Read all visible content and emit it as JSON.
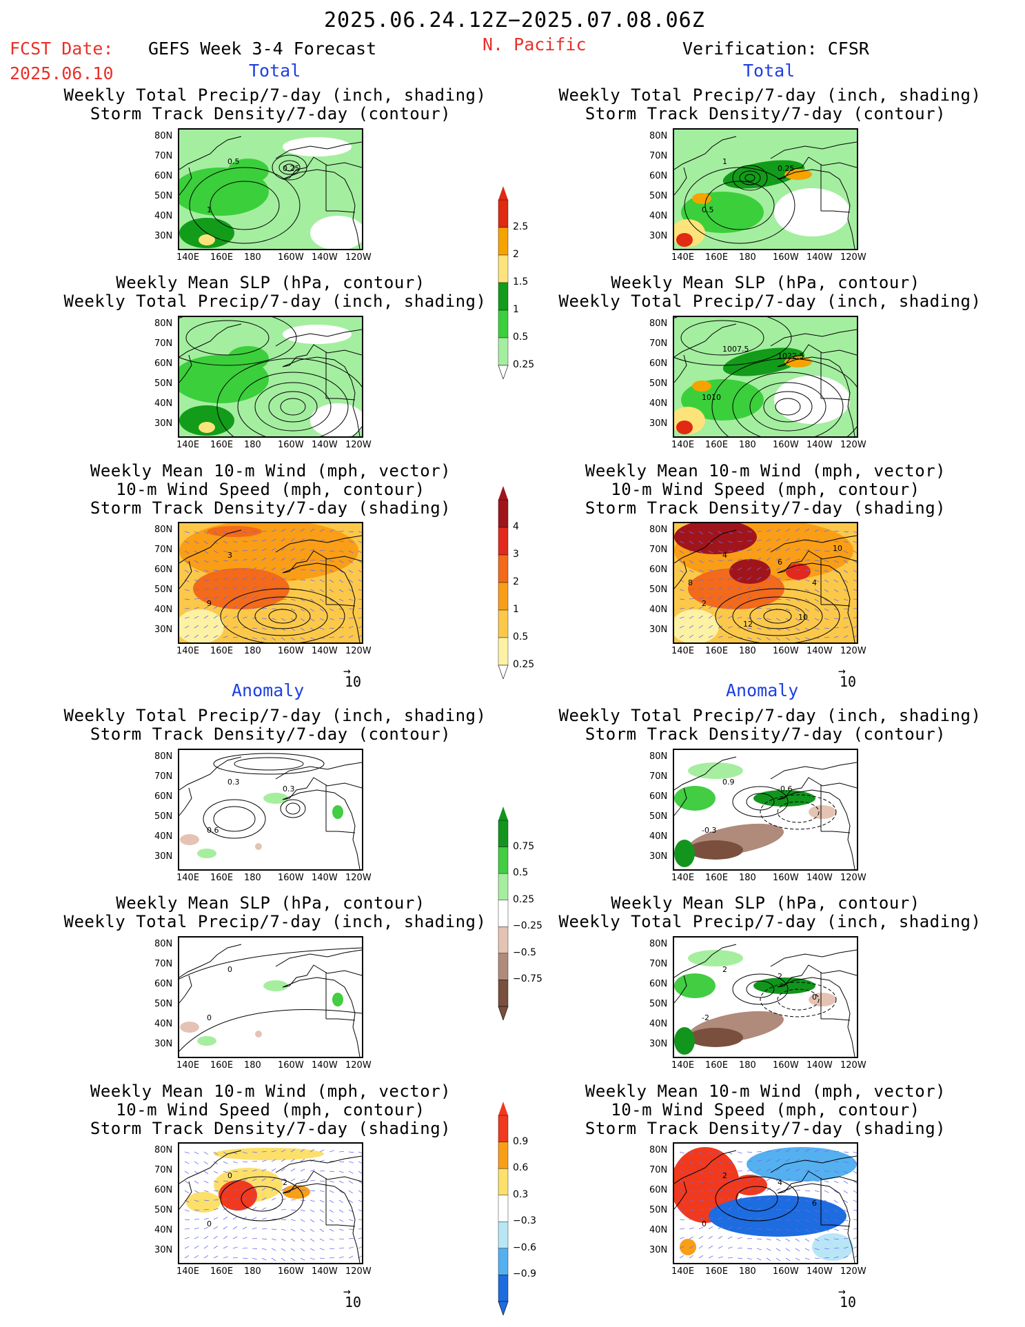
{
  "header": {
    "date_range": "2025.06.24.12Z−2025.07.08.06Z",
    "fcst_label": "FCST Date:",
    "fcst_date": "2025.06.10",
    "forecast_title": "GEFS Week 3-4 Forecast",
    "region": "N. Pacific",
    "verification": "Verification: CFSR"
  },
  "sections": {
    "total_left": "Total",
    "total_right": "Total",
    "anomaly_left": "Anomaly",
    "anomaly_right": "Anomaly"
  },
  "captions": {
    "precip_storm": [
      "Weekly Total Precip/7-day (inch, shading)",
      "Storm Track Density/7-day (contour)"
    ],
    "slp_precip": [
      "Weekly Mean SLP (hPa, contour)",
      "Weekly Total Precip/7-day (inch, shading)"
    ],
    "wind_storm": [
      "Weekly Mean 10-m Wind (mph, vector)",
      "10-m Wind Speed (mph, contour)",
      "Storm Track Density/7-day (shading)"
    ]
  },
  "axes": {
    "lat_labels": [
      "80N",
      "70N",
      "60N",
      "50N",
      "40N",
      "30N"
    ],
    "lon_labels": [
      "140E",
      "160E",
      "180",
      "160W",
      "140W",
      "120W"
    ]
  },
  "vector_ref": "10",
  "colorbars": {
    "precip_total": {
      "labels": [
        "2.5",
        "2",
        "1.5",
        "1",
        "0.5",
        "0.25"
      ],
      "colors": [
        "#e02a12",
        "#f5a300",
        "#fde37a",
        "#129c1a",
        "#3bcf3b",
        "#a4eea0"
      ]
    },
    "storm_total": {
      "labels": [
        "4",
        "3",
        "2",
        "1",
        "0.5",
        "0.25"
      ],
      "colors": [
        "#a0151b",
        "#e2291d",
        "#f26a1a",
        "#f99e16",
        "#fbc84a",
        "#fdf2a4"
      ]
    },
    "precip_anom": {
      "labels": [
        "0.75",
        "0.5",
        "0.25",
        "−0.25",
        "−0.5",
        "−0.75"
      ],
      "colors": [
        "#11951d",
        "#42cd42",
        "#a5ee9f",
        "#ffffff",
        "#e4c3b4",
        "#b08a7b",
        "#7a4f3e"
      ]
    },
    "storm_anom": {
      "labels": [
        "0.9",
        "0.6",
        "0.3",
        "−0.3",
        "−0.6",
        "−0.9"
      ],
      "colors": [
        "#f1391d",
        "#f99e16",
        "#fde06a",
        "#ffffff",
        "#b9e6f7",
        "#55b0f0",
        "#1d6ce0"
      ]
    }
  },
  "panel_annotations": {
    "p1": [
      "0.5",
      "1",
      "0.25"
    ],
    "p2": [
      "1",
      "0.5",
      "0.25"
    ],
    "p4": [
      "1007.5",
      "1010",
      "1022.5"
    ],
    "p5": [
      "3",
      "9"
    ],
    "p6": [
      "4",
      "2",
      "6",
      "4",
      "12",
      "10",
      "8",
      "10"
    ],
    "p7": [
      "0.3",
      "0.6",
      "0.3"
    ],
    "p8": [
      "0.9",
      "-0.3",
      "-0.6"
    ],
    "p9": [
      "0",
      "0"
    ],
    "p10": [
      "2",
      "-2",
      "2",
      "0"
    ],
    "p11": [
      "0",
      "0",
      "2"
    ],
    "p12": [
      "2",
      "0",
      "4",
      "6"
    ]
  }
}
